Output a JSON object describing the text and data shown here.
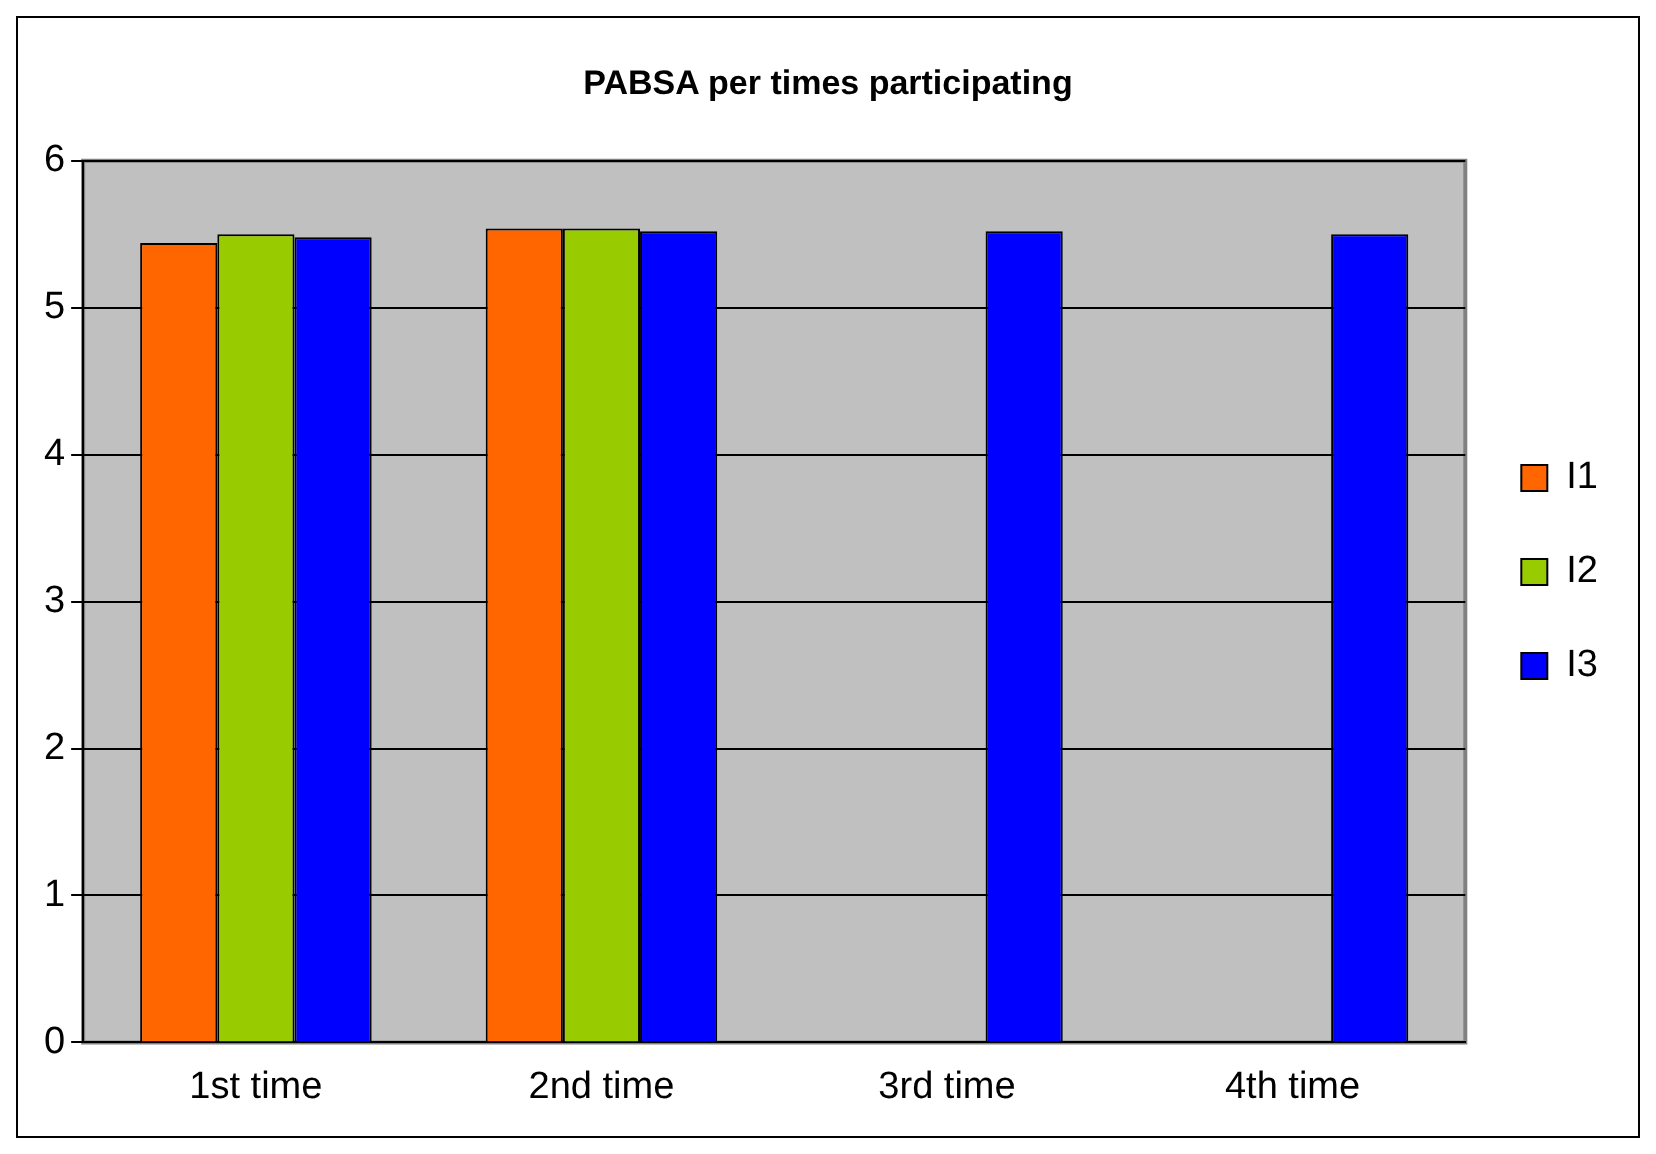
{
  "chart_data": {
    "type": "bar",
    "title": "PABSA per times participating",
    "categories": [
      "1st time",
      "2nd time",
      "3rd time",
      "4th time"
    ],
    "series": [
      {
        "name": "I1",
        "color": "#ff6600",
        "values": [
          5.44,
          5.54,
          null,
          null
        ]
      },
      {
        "name": "I2",
        "color": "#99cc00",
        "values": [
          5.5,
          5.54,
          null,
          null
        ]
      },
      {
        "name": "I3",
        "color": "#0000ff",
        "values": [
          5.48,
          5.52,
          5.52,
          5.5
        ]
      }
    ],
    "ylim": [
      0,
      6
    ],
    "yticks": [
      0,
      1,
      2,
      3,
      4,
      5,
      6
    ],
    "grid": "y",
    "legend": "right"
  }
}
